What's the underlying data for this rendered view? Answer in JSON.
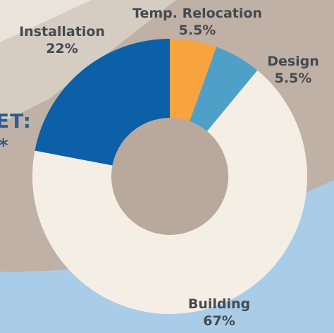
{
  "page": {
    "side_text": "ET:",
    "side_star": "*"
  },
  "chart_data": {
    "type": "pie",
    "donut": true,
    "slices": [
      {
        "label": "Temp. Relocation",
        "value": 5.5,
        "value_label": "5.5%",
        "color": "#f7a440"
      },
      {
        "label": "Design",
        "value": 5.5,
        "value_label": "5.5%",
        "color": "#4fa0c9"
      },
      {
        "label": "Building",
        "value": 67,
        "value_label": "67%",
        "color": "#f5eee5"
      },
      {
        "label": "Installation",
        "value": 22,
        "value_label": "22%",
        "color": "#0b60a7"
      }
    ],
    "start_angle_deg": 0,
    "direction": "clockwise",
    "title": "",
    "legend": "none"
  },
  "colors": {
    "background": "#bfb1a6",
    "wall_highlight": "#e8e1d9",
    "floor_blue": "#a9cde9",
    "label_text": "#444a4f",
    "side_text": "#2e5c8f"
  }
}
